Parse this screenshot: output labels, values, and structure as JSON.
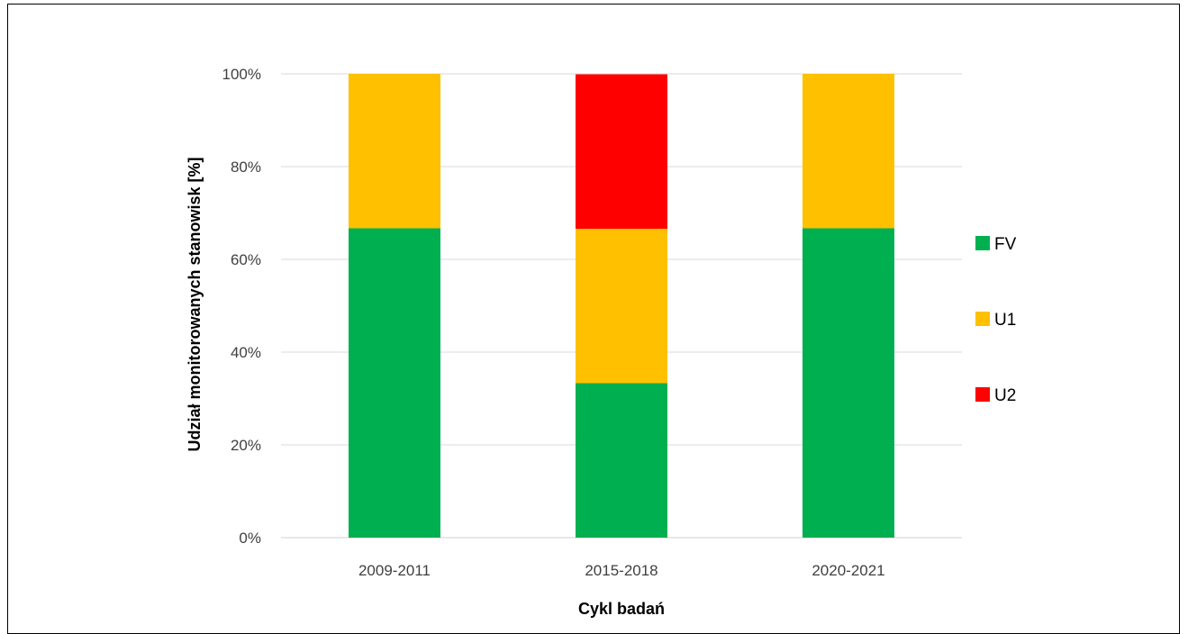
{
  "chart_data": {
    "type": "bar",
    "stacked": true,
    "categories": [
      "2009-2011",
      "2015-2018",
      "2020-2021"
    ],
    "series": [
      {
        "name": "FV",
        "color": "#00B050",
        "values": [
          66.7,
          33.3,
          66.7
        ]
      },
      {
        "name": "U1",
        "color": "#FFC000",
        "values": [
          33.3,
          33.3,
          33.3
        ]
      },
      {
        "name": "U2",
        "color": "#FF0000",
        "values": [
          0,
          33.3,
          0
        ]
      }
    ],
    "xlabel": "Cykl badań",
    "ylabel": "Udział monitorowanych stanowisk [%]",
    "ylim": [
      0,
      100
    ],
    "yticks": [
      "0%",
      "20%",
      "40%",
      "60%",
      "80%",
      "100%"
    ],
    "grid": true,
    "legend": "right"
  }
}
